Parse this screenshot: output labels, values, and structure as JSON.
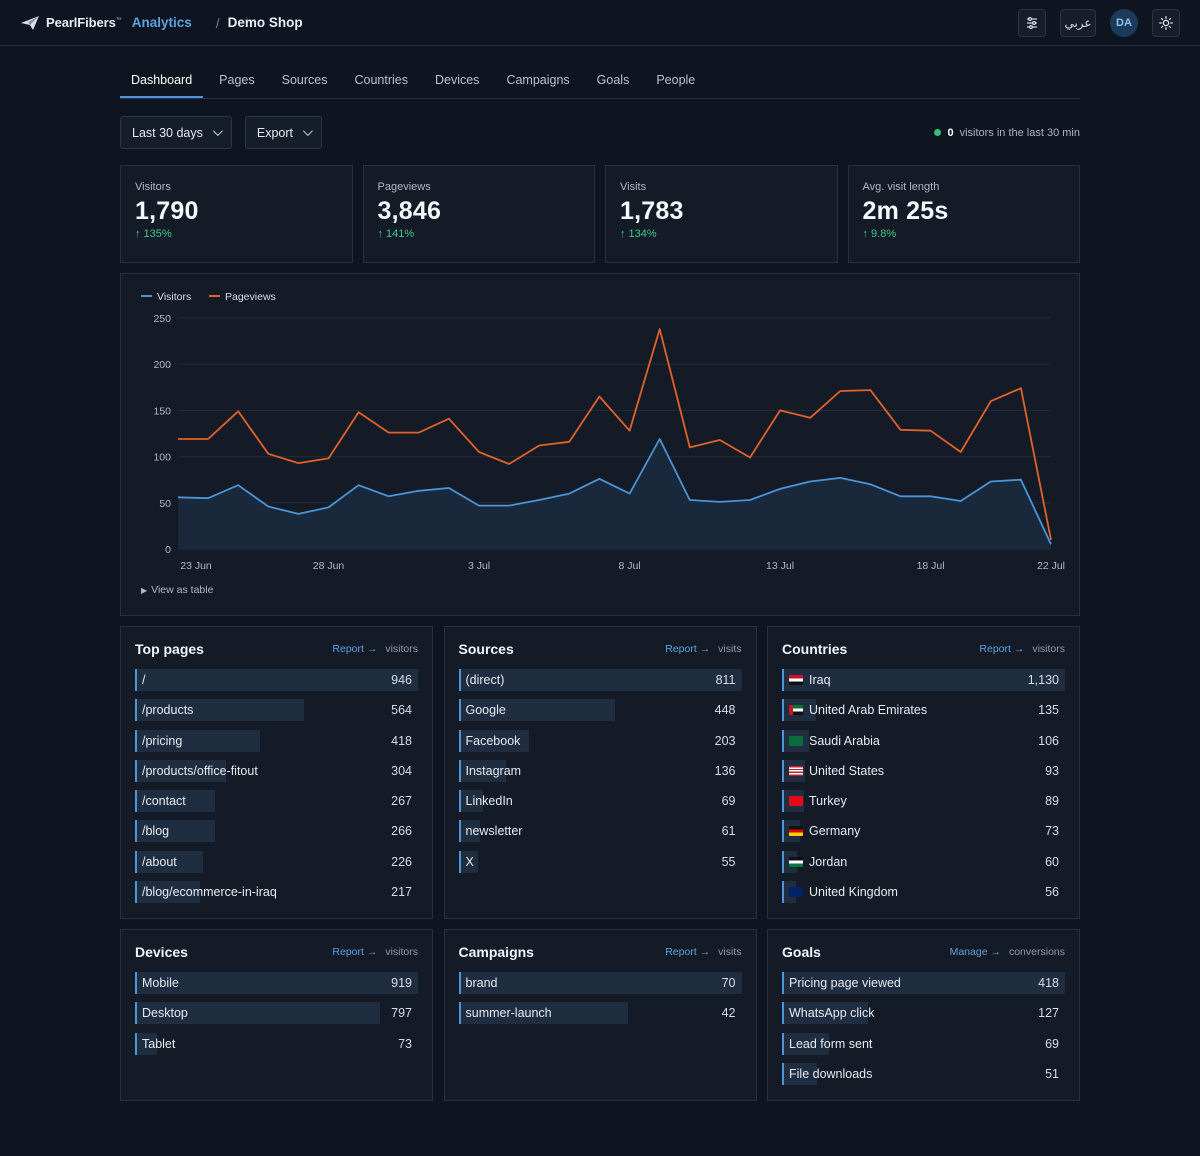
{
  "header": {
    "brand_name": "PearlFibers",
    "brand_tm": "™",
    "product": "Analytics",
    "separator": "/",
    "site": "Demo Shop",
    "lang_label": "عربي",
    "avatar_initials": "DA",
    "icons": [
      "sliders-icon",
      "sun-icon"
    ]
  },
  "tabs": [
    "Dashboard",
    "Pages",
    "Sources",
    "Countries",
    "Devices",
    "Campaigns",
    "Goals",
    "People"
  ],
  "active_tab": "Dashboard",
  "toolbar": {
    "range_label": "Last 30 days",
    "export_label": "Export",
    "live_count": "0",
    "live_text": "visitors in the last 30 min"
  },
  "stats": [
    {
      "label": "Visitors",
      "value": "1,790",
      "delta": "↑ 135%"
    },
    {
      "label": "Pageviews",
      "value": "3,846",
      "delta": "↑ 141%"
    },
    {
      "label": "Visits",
      "value": "1,783",
      "delta": "↑ 134%"
    },
    {
      "label": "Avg. visit length",
      "value": "2m 25s",
      "delta": "↑ 9.8%"
    }
  ],
  "chart_data": {
    "type": "line",
    "x_tick_labels": [
      "23 Jun",
      "28 Jun",
      "3 Jul",
      "8 Jul",
      "13 Jul",
      "18 Jul",
      "22 Jul"
    ],
    "x_tick_index": [
      0,
      5,
      10,
      15,
      20,
      25,
      29
    ],
    "y_ticks": [
      0,
      50,
      100,
      150,
      200,
      250
    ],
    "ylim": [
      0,
      250
    ],
    "series": [
      {
        "name": "Visitors",
        "color": "#4a94d8",
        "values": [
          56,
          55,
          69,
          46,
          38,
          45,
          69,
          57,
          63,
          66,
          47,
          47,
          53,
          60,
          76,
          60,
          119,
          53,
          51,
          53,
          65,
          73,
          77,
          70,
          57,
          57,
          52,
          73,
          75,
          5
        ]
      },
      {
        "name": "Pageviews",
        "color": "#e0622a",
        "values": [
          119,
          119,
          149,
          103,
          93,
          98,
          148,
          126,
          126,
          141,
          105,
          92,
          112,
          116,
          165,
          128,
          238,
          110,
          118,
          99,
          150,
          142,
          171,
          172,
          129,
          128,
          105,
          160,
          174,
          10
        ]
      }
    ],
    "view_as_table": "View as table"
  },
  "panels": [
    {
      "title": "Top pages",
      "link": "Report →",
      "metric": "visitors",
      "rows": [
        {
          "label": "/",
          "value": "946",
          "pct": 100
        },
        {
          "label": "/products",
          "value": "564",
          "pct": 59.6
        },
        {
          "label": "/pricing",
          "value": "418",
          "pct": 44.2
        },
        {
          "label": "/products/office-fitout",
          "value": "304",
          "pct": 32.1
        },
        {
          "label": "/contact",
          "value": "267",
          "pct": 28.2
        },
        {
          "label": "/blog",
          "value": "266",
          "pct": 28.1
        },
        {
          "label": "/about",
          "value": "226",
          "pct": 23.9
        },
        {
          "label": "/blog/ecommerce-in-iraq",
          "value": "217",
          "pct": 22.9
        }
      ]
    },
    {
      "title": "Sources",
      "link": "Report →",
      "metric": "visits",
      "rows": [
        {
          "label": "(direct)",
          "value": "811",
          "pct": 100
        },
        {
          "label": "Google",
          "value": "448",
          "pct": 55.2
        },
        {
          "label": "Facebook",
          "value": "203",
          "pct": 25
        },
        {
          "label": "Instagram",
          "value": "136",
          "pct": 16.8
        },
        {
          "label": "LinkedIn",
          "value": "69",
          "pct": 8.5
        },
        {
          "label": "newsletter",
          "value": "61",
          "pct": 7.5
        },
        {
          "label": "X",
          "value": "55",
          "pct": 6.8
        }
      ]
    },
    {
      "title": "Countries",
      "link": "Report →",
      "metric": "visitors",
      "rows": [
        {
          "label": "Iraq",
          "value": "1,130",
          "pct": 100,
          "flag": "iq"
        },
        {
          "label": "United Arab Emirates",
          "value": "135",
          "pct": 11.9,
          "flag": "ae"
        },
        {
          "label": "Saudi Arabia",
          "value": "106",
          "pct": 9.4,
          "flag": "sa"
        },
        {
          "label": "United States",
          "value": "93",
          "pct": 8.2,
          "flag": "us"
        },
        {
          "label": "Turkey",
          "value": "89",
          "pct": 7.9,
          "flag": "tr"
        },
        {
          "label": "Germany",
          "value": "73",
          "pct": 6.5,
          "flag": "de"
        },
        {
          "label": "Jordan",
          "value": "60",
          "pct": 5.3,
          "flag": "jo"
        },
        {
          "label": "United Kingdom",
          "value": "56",
          "pct": 5,
          "flag": "gb"
        }
      ]
    },
    {
      "title": "Devices",
      "link": "Report →",
      "metric": "visitors",
      "rows": [
        {
          "label": "Mobile",
          "value": "919",
          "pct": 100
        },
        {
          "label": "Desktop",
          "value": "797",
          "pct": 86.7
        },
        {
          "label": "Tablet",
          "value": "73",
          "pct": 7.9
        }
      ]
    },
    {
      "title": "Campaigns",
      "link": "Report →",
      "metric": "visits",
      "rows": [
        {
          "label": "brand",
          "value": "70",
          "pct": 100
        },
        {
          "label": "summer-launch",
          "value": "42",
          "pct": 60
        }
      ]
    },
    {
      "title": "Goals",
      "link": "Manage →",
      "metric": "conversions",
      "rows": [
        {
          "label": "Pricing page viewed",
          "value": "418",
          "pct": 100
        },
        {
          "label": "WhatsApp click",
          "value": "127",
          "pct": 30.4
        },
        {
          "label": "Lead form sent",
          "value": "69",
          "pct": 16.5
        },
        {
          "label": "File downloads",
          "value": "51",
          "pct": 12.2
        }
      ]
    }
  ]
}
